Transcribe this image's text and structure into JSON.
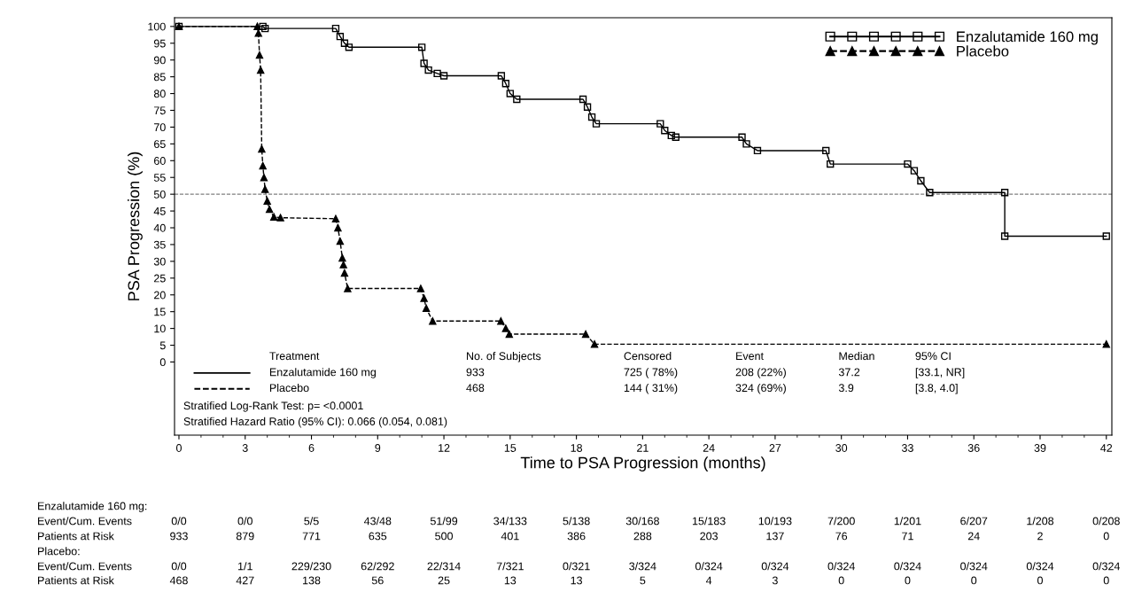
{
  "chart_data": {
    "type": "line",
    "xlabel": "Time to PSA Progression (months)",
    "ylabel": "PSA Progression (%)",
    "xlim": [
      -0.2,
      42.25
    ],
    "ylim": [
      -21.8,
      102.6
    ],
    "xticks": [
      0,
      3,
      6,
      9,
      12,
      15,
      18,
      21,
      24,
      27,
      30,
      33,
      36,
      39,
      42
    ],
    "yticks": [
      0,
      5,
      10,
      15,
      20,
      25,
      30,
      35,
      40,
      45,
      50,
      55,
      60,
      65,
      70,
      75,
      80,
      85,
      90,
      95,
      100
    ],
    "grid": false,
    "legend": "top right",
    "ref_lines": [
      {
        "axis": "y",
        "value": 50,
        "label": null,
        "color": "#808080",
        "line_style": "dashed"
      }
    ],
    "series": [
      {
        "name": "Enzalutamide 160 mg",
        "color": "#000000",
        "marker": "square",
        "line_style": "solid",
        "x": [
          0,
          3.8,
          3.9,
          7.1,
          7.3,
          7.5,
          7.7,
          11.0,
          11.1,
          11.3,
          11.7,
          12.0,
          14.6,
          14.8,
          15.0,
          15.3,
          18.3,
          18.5,
          18.7,
          18.9,
          21.8,
          22.0,
          22.3,
          22.5,
          25.5,
          25.7,
          26.2,
          29.3,
          29.5,
          33.0,
          33.3,
          33.6,
          34.0,
          37.4,
          37.4,
          42.0
        ],
        "values": [
          100,
          100,
          99.4,
          99.4,
          97,
          95,
          93.8,
          93.8,
          89,
          87,
          86,
          85.3,
          85.3,
          83,
          80,
          78.3,
          78.3,
          76,
          73,
          71,
          71,
          69,
          67.5,
          67,
          67,
          65,
          63,
          63,
          59,
          59,
          57,
          54,
          50.5,
          50.5,
          37.5,
          37.5
        ]
      },
      {
        "name": "Placebo",
        "color": "#000000",
        "marker": "triangle",
        "line_style": "dashed",
        "x": [
          0,
          3.55,
          3.6,
          3.65,
          3.7,
          3.75,
          3.8,
          3.85,
          3.9,
          4.0,
          4.1,
          4.3,
          4.6,
          7.1,
          7.2,
          7.3,
          7.4,
          7.45,
          7.5,
          7.64,
          10.95,
          11.1,
          11.2,
          11.49,
          14.58,
          14.8,
          14.96,
          18.42,
          18.82,
          42.0
        ],
        "values": [
          100,
          100,
          98,
          91.5,
          87,
          63.5,
          58.5,
          55,
          51.5,
          48,
          45.5,
          43.2,
          43,
          42.7,
          40,
          36,
          31,
          29,
          26.5,
          21.9,
          21.9,
          19,
          16,
          12.2,
          12.2,
          10,
          8.3,
          8.3,
          5.3,
          5.3
        ]
      }
    ],
    "annotations": [
      "Treatment",
      "No. of Subjects",
      "Censored",
      "Event",
      "Median",
      "95% CI",
      "Enzalutamide 160 mg",
      "933",
      "725 ( 78%)",
      "208 (22%)",
      "37.2",
      "[33.1, NR]",
      "Placebo",
      "468",
      "144 ( 31%)",
      "324 (69%)",
      "3.9",
      "[3.8, 4.0]",
      "Stratified Log-Rank Test: p= <0.0001",
      "Stratified Hazard Ratio (95% CI): 0.066 (0.054, 0.081)",
      "Enzalutamide 160 mg:",
      "Event/Cum. Events",
      "0/0",
      "0/0",
      "5/5",
      "43/48",
      "51/99",
      "34/133",
      "5/138",
      "30/168",
      "15/183",
      "10/193",
      "7/200",
      "1/201",
      "6/207",
      "1/208",
      "0/208",
      "Patients at Risk",
      "933",
      "879",
      "771",
      "635",
      "500",
      "401",
      "386",
      "288",
      "203",
      "137",
      "76",
      "71",
      "24",
      "2",
      "0",
      "Placebo:",
      "Event/Cum. Events",
      "0/0",
      "1/1",
      "229/230",
      "62/292",
      "22/314",
      "7/321",
      "0/321",
      "3/324",
      "0/324",
      "0/324",
      "0/324",
      "0/324",
      "0/324",
      "0/324",
      "0/324",
      "Patients at Risk",
      "468",
      "427",
      "138",
      "56",
      "25",
      "13",
      "13",
      "5",
      "4",
      "3",
      "0",
      "0",
      "0",
      "0",
      "0"
    ]
  }
}
